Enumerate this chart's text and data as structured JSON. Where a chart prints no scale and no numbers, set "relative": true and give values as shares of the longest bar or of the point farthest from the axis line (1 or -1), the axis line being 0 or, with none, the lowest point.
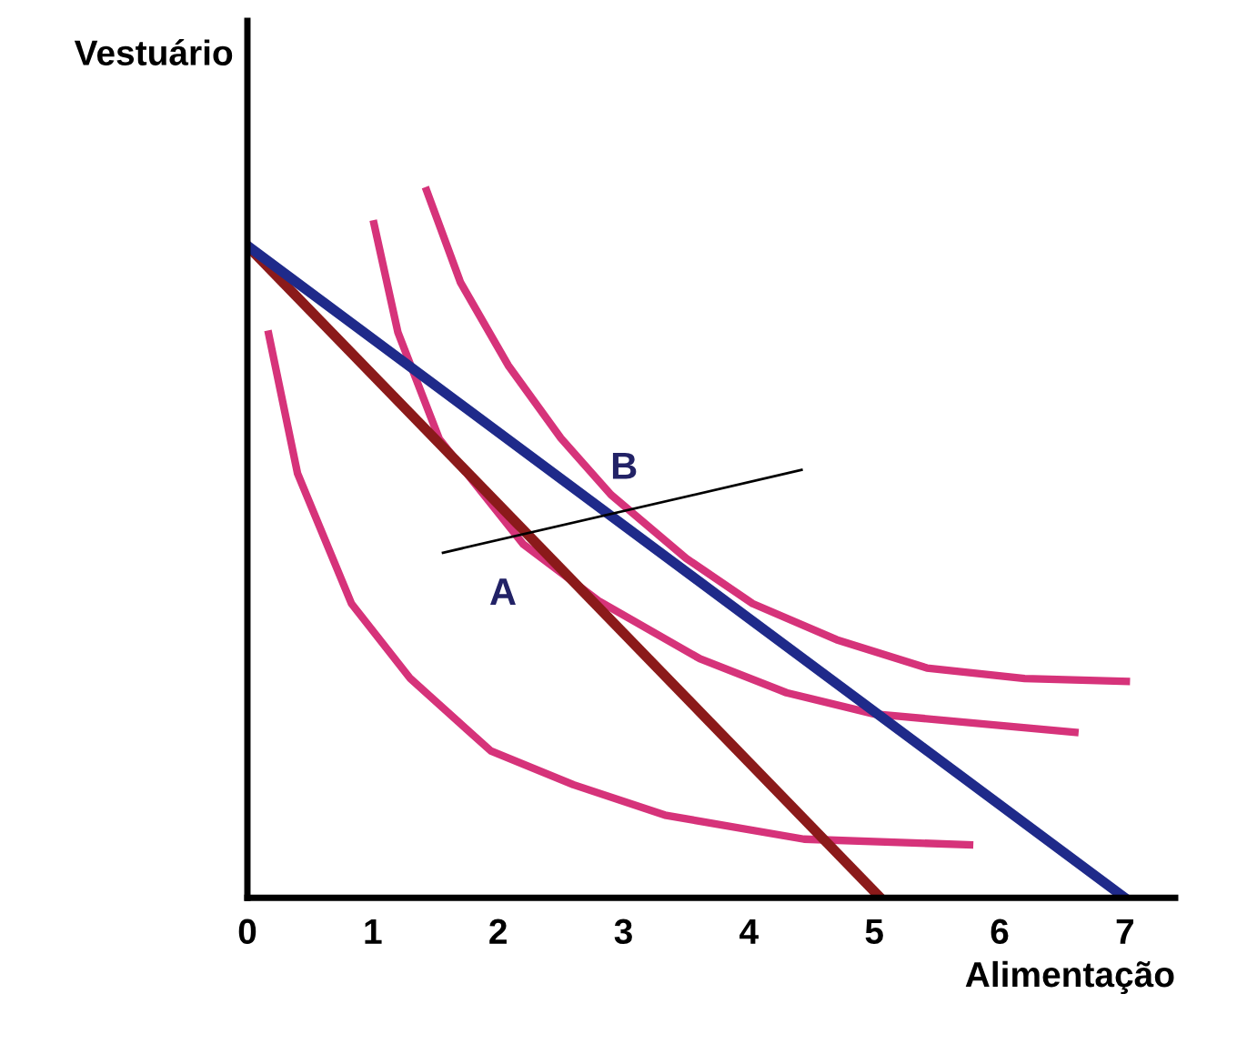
{
  "chart_data": {
    "type": "line",
    "xlabel": "Alimentação",
    "ylabel": "Vestuário",
    "relative": true,
    "xlim": [
      0,
      7.4
    ],
    "xticks": [
      0,
      1,
      2,
      3,
      4,
      5,
      6,
      7
    ],
    "tick_labels": "x",
    "grid": false,
    "legend": false,
    "marker": "none",
    "line_style": "solid",
    "series": [
      {
        "color": "#d6337a",
        "x": [
          0.17,
          0.4,
          0.83,
          1.3,
          1.94,
          2.6,
          3.33,
          4.44,
          5.76
        ],
        "values": [
          0.797,
          0.6,
          0.416,
          0.31,
          0.208,
          0.16,
          0.117,
          0.083,
          0.075
        ]
      },
      {
        "color": "#d6337a",
        "x": [
          1.01,
          1.2,
          1.53,
          2.2,
          2.8,
          3.61,
          4.3,
          5.0,
          6.6
        ],
        "values": [
          0.953,
          0.8,
          0.649,
          0.5,
          0.42,
          0.338,
          0.29,
          0.26,
          0.234
        ]
      },
      {
        "color": "#d6337a",
        "x": [
          1.43,
          1.7,
          2.08,
          2.5,
          2.9,
          3.5,
          4.03,
          4.7,
          5.42,
          6.2,
          7.01
        ],
        "values": [
          1.0,
          0.87,
          0.753,
          0.65,
          0.57,
          0.48,
          0.416,
          0.365,
          0.325,
          0.31,
          0.306
        ]
      },
      {
        "color": "#8b1a1a",
        "x": [
          0,
          5.05
        ],
        "values": [
          0.922,
          0
        ]
      },
      {
        "color": "#1f2a8a",
        "x": [
          0,
          7
        ],
        "values": [
          0.922,
          0
        ]
      },
      {
        "color": "#000000",
        "x": [
          1.56,
          4.42
        ],
        "values": [
          0.488,
          0.605
        ]
      }
    ],
    "annotations": [
      {
        "text": "A",
        "x": 2.2,
        "y": 0.514
      },
      {
        "text": "B",
        "x": 2.884,
        "y": 0.542
      }
    ]
  }
}
